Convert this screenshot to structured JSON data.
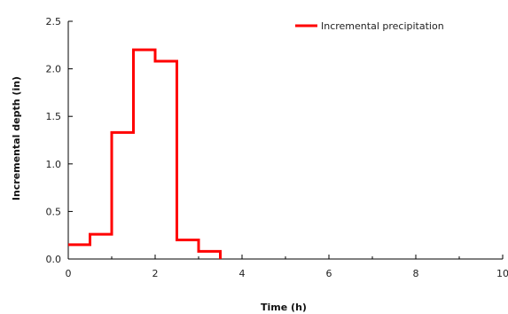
{
  "chart_data": {
    "type": "line",
    "step": true,
    "title": "",
    "xlabel": "Time (h)",
    "ylabel": "Incremental depth (in)",
    "xlim": [
      0,
      10
    ],
    "ylim": [
      0,
      2.5
    ],
    "x_ticks": [
      "0",
      "2",
      "4",
      "6",
      "8",
      "10"
    ],
    "y_ticks": [
      "0.0",
      "0.5",
      "1.0",
      "1.5",
      "2.0",
      "2.5"
    ],
    "grid": false,
    "legend_position": "top-right",
    "series": [
      {
        "name": "Incremental precipitation",
        "color": "#ff0000",
        "intervals": [
          {
            "start": 0.0,
            "end": 0.5,
            "value": 0.15
          },
          {
            "start": 0.5,
            "end": 1.0,
            "value": 0.26
          },
          {
            "start": 1.0,
            "end": 1.5,
            "value": 1.33
          },
          {
            "start": 1.5,
            "end": 2.0,
            "value": 2.2
          },
          {
            "start": 2.0,
            "end": 2.5,
            "value": 2.08
          },
          {
            "start": 2.5,
            "end": 3.0,
            "value": 0.2
          },
          {
            "start": 3.0,
            "end": 3.5,
            "value": 0.08
          }
        ]
      }
    ]
  }
}
